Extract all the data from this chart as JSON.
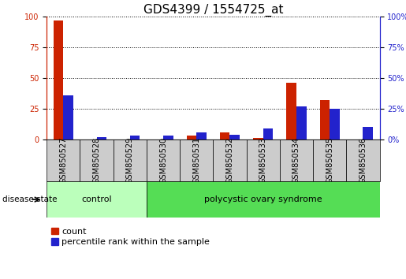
{
  "title": "GDS4399 / 1554725_at",
  "samples": [
    "GSM850527",
    "GSM850528",
    "GSM850529",
    "GSM850530",
    "GSM850531",
    "GSM850532",
    "GSM850533",
    "GSM850534",
    "GSM850535",
    "GSM850536"
  ],
  "count": [
    97,
    0,
    0,
    0,
    3,
    6,
    1,
    46,
    32,
    0
  ],
  "percentile": [
    36,
    2,
    3,
    3,
    6,
    4,
    9,
    27,
    25,
    10
  ],
  "groups": [
    {
      "label": "control",
      "indices": [
        0,
        1,
        2
      ],
      "color": "#bbffbb"
    },
    {
      "label": "polycystic ovary syndrome",
      "indices": [
        3,
        4,
        5,
        6,
        7,
        8,
        9
      ],
      "color": "#55dd55"
    }
  ],
  "ylim_left": [
    0,
    100
  ],
  "ylim_right": [
    0,
    100
  ],
  "yticks": [
    0,
    25,
    50,
    75,
    100
  ],
  "bar_color_count": "#cc2200",
  "bar_color_pct": "#2222cc",
  "bar_width": 0.3,
  "legend_count_label": "count",
  "legend_pct_label": "percentile rank within the sample",
  "disease_state_label": "disease state",
  "background_sample": "#cccccc",
  "title_fontsize": 11,
  "tick_fontsize": 7,
  "label_fontsize": 8,
  "group_fontsize": 8,
  "legend_fontsize": 8
}
